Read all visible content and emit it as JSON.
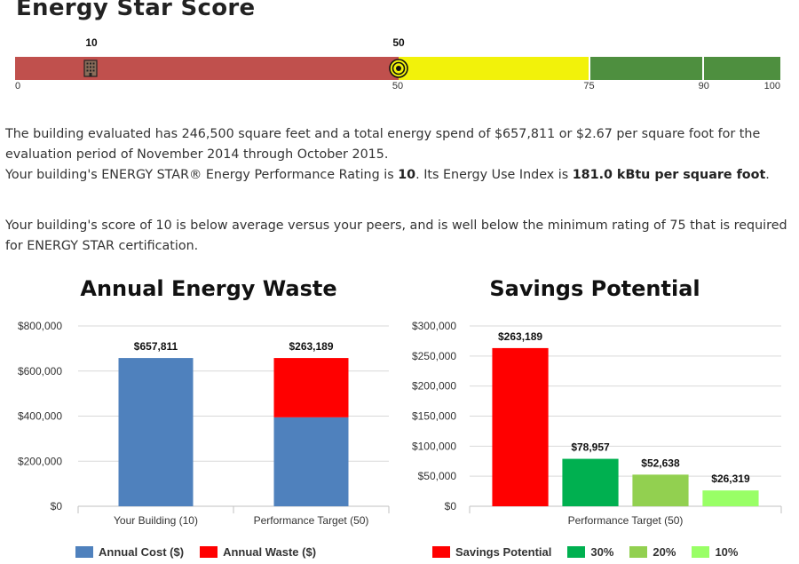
{
  "page": {
    "title": "Energy Star Score"
  },
  "gauge": {
    "scale_min": 0,
    "scale_max": 100,
    "building_score": 10,
    "target_score": 50,
    "building_score_label": "10",
    "target_score_label": "50",
    "ticks": [
      {
        "value": 0,
        "label": "0"
      },
      {
        "value": 50,
        "label": "50"
      },
      {
        "value": 75,
        "label": "75"
      },
      {
        "value": 90,
        "label": "90"
      },
      {
        "value": 100,
        "label": "100"
      }
    ],
    "bands": [
      {
        "from": 0,
        "to": 50,
        "color": "#c0504d"
      },
      {
        "from": 50,
        "to": 75,
        "color": "#f2f20a"
      },
      {
        "from": 75,
        "to": 90,
        "color": "#4e8f3f"
      },
      {
        "from": 90,
        "to": 100,
        "color": "#4e8f3f"
      }
    ],
    "icons": {
      "building": "building-icon",
      "target": "target-icon"
    }
  },
  "summary": {
    "p1": "The building evaluated has 246,500 square feet and a total energy spend of $657,811 or $2.67 per square foot for the evaluation period of November 2014 through October 2015.",
    "p2_prefix": "Your building's ENERGY STAR® Energy Performance Rating is ",
    "p2_rating": "10",
    "p2_mid": ". Its Energy Use Index is ",
    "p2_eui": "181.0 kBtu per square foot",
    "p2_suffix": ".",
    "p3": "Your building's score of 10 is below average versus your peers, and is well below the minimum rating of 75 that is required for ENERGY STAR certification."
  },
  "chart_data": [
    {
      "type": "bar",
      "stacked": true,
      "title": "Annual Energy Waste",
      "categories": [
        "Your Building (10)",
        "Performance Target (50)"
      ],
      "series": [
        {
          "name": "Annual Cost ($)",
          "color": "#4f81bd",
          "values": [
            657811,
            394622
          ]
        },
        {
          "name": "Annual Waste ($)",
          "color": "#ff0000",
          "values": [
            0,
            263189
          ]
        }
      ],
      "data_labels": [
        "$657,811",
        "$263,189"
      ],
      "yticks": [
        "$0",
        "$200,000",
        "$400,000",
        "$600,000",
        "$800,000"
      ],
      "ylim": [
        0,
        800000
      ],
      "grid": true,
      "legend": "bottom"
    },
    {
      "type": "bar",
      "title": "Savings Potential",
      "categories": [
        "Performance Target (50)"
      ],
      "series": [
        {
          "name": "Savings Potential",
          "color": "#ff0000",
          "values": [
            263189
          ]
        },
        {
          "name": "30%",
          "color": "#00b050",
          "values": [
            78957
          ]
        },
        {
          "name": "20%",
          "color": "#92d050",
          "values": [
            52638
          ]
        },
        {
          "name": "10%",
          "color": "#99ff66",
          "values": [
            26319
          ]
        }
      ],
      "data_labels": [
        "$263,189",
        "$78,957",
        "$52,638",
        "$26,319"
      ],
      "yticks": [
        "$0",
        "$50,000",
        "$100,000",
        "$150,000",
        "$200,000",
        "$250,000",
        "$300,000"
      ],
      "ylim": [
        0,
        300000
      ],
      "grid": true,
      "legend": "bottom"
    }
  ]
}
